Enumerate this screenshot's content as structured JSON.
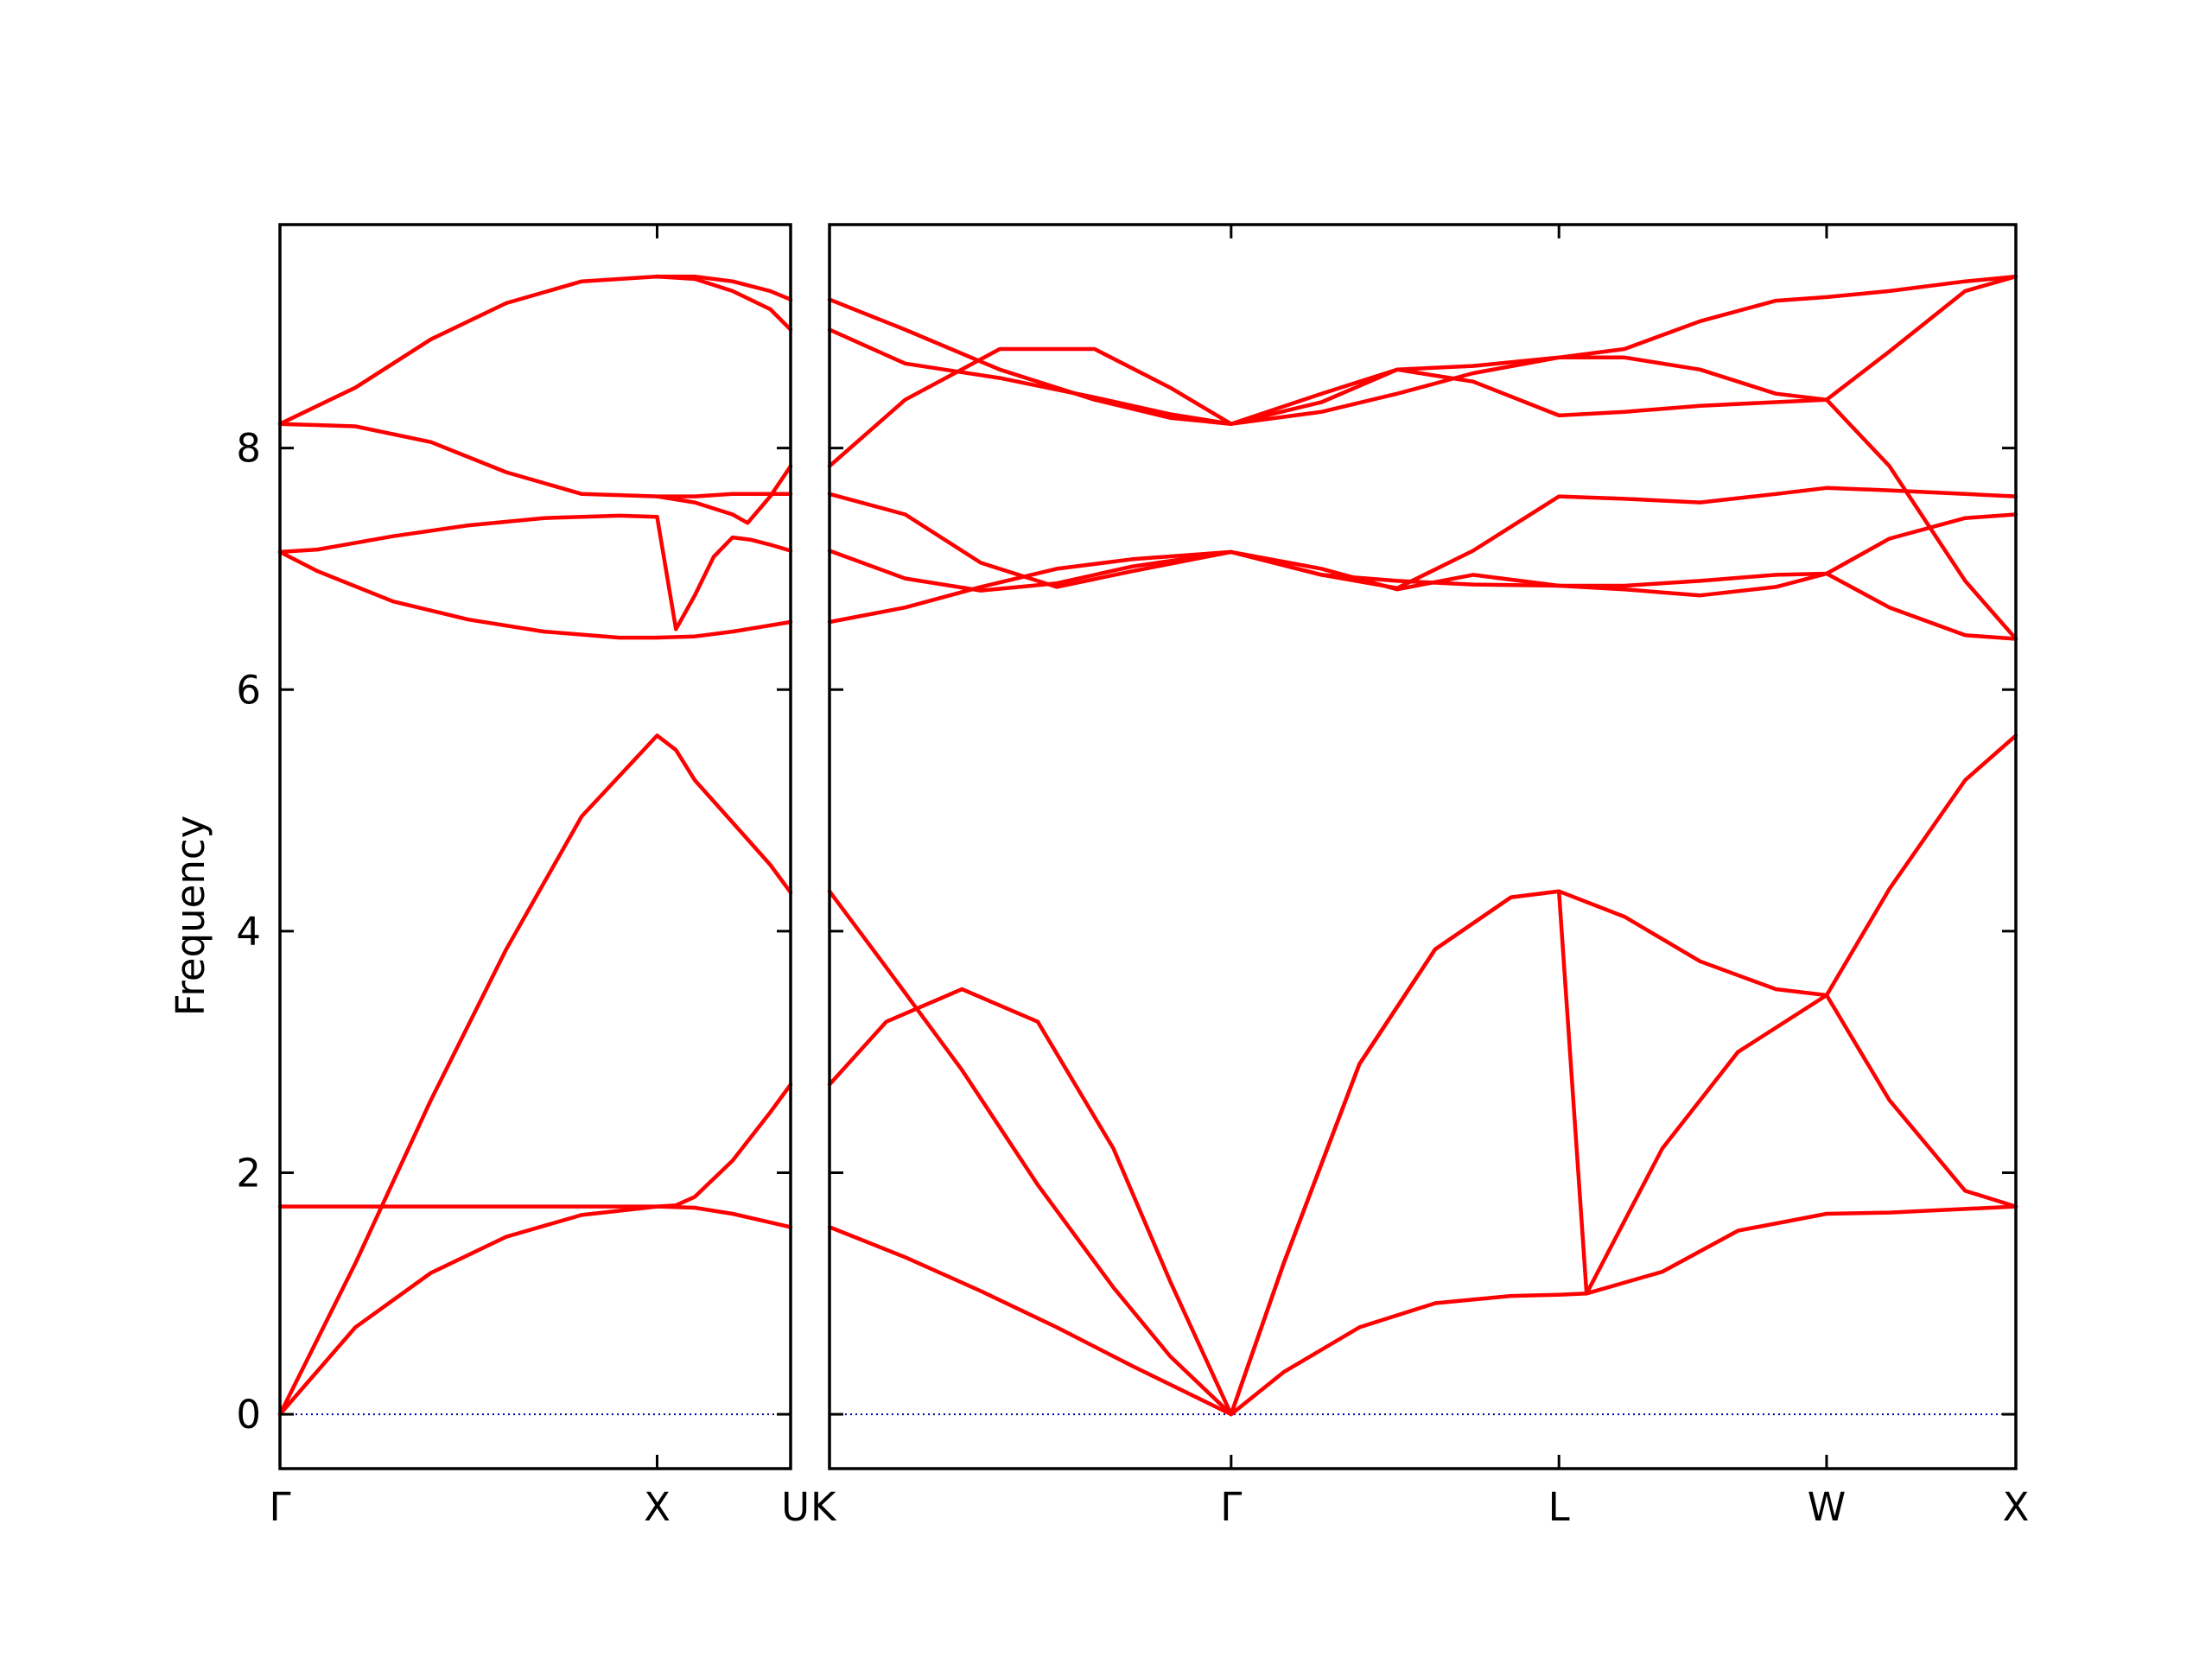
{
  "chart_data": {
    "type": "line",
    "ylabel": "Frequency",
    "ylim": [
      -0.45,
      9.85
    ],
    "yticks": [
      0,
      2,
      4,
      6,
      8
    ],
    "grid": false,
    "colors": {
      "bands": "#ff0000",
      "zero_line": "#0000aa",
      "axes": "#000000"
    },
    "panels": [
      {
        "xticks": [
          {
            "pos": 0.0,
            "label": "Γ"
          },
          {
            "pos": 1.0,
            "label": "X"
          },
          {
            "pos": 1.354,
            "label": "U"
          }
        ],
        "xlim": [
          0,
          1.354
        ],
        "series": [
          {
            "x": [
              0,
              0.2,
              0.4,
              0.6,
              0.8,
              1.0,
              1.1,
              1.2,
              1.354
            ],
            "y": [
              0,
              0.72,
              1.17,
              1.47,
              1.65,
              1.72,
              1.71,
              1.66,
              1.55
            ]
          },
          {
            "x": [
              0,
              0.2,
              0.4,
              0.6,
              0.8,
              1.0,
              1.05,
              1.1,
              1.2,
              1.3,
              1.354
            ],
            "y": [
              0,
              1.25,
              2.6,
              3.85,
              4.95,
              5.62,
              5.5,
              5.25,
              4.9,
              4.55,
              4.32
            ]
          },
          {
            "x": [
              0,
              0.2,
              0.4,
              0.6,
              0.8,
              1.0,
              1.05,
              1.1,
              1.2,
              1.3,
              1.354
            ],
            "y": [
              1.72,
              1.72,
              1.72,
              1.72,
              1.72,
              1.72,
              1.73,
              1.8,
              2.1,
              2.5,
              2.73
            ]
          },
          {
            "x": [
              0,
              0.1,
              0.3,
              0.5,
              0.7,
              0.9,
              1.0,
              1.1,
              1.2,
              1.354
            ],
            "y": [
              7.14,
              6.98,
              6.73,
              6.58,
              6.48,
              6.43,
              6.43,
              6.44,
              6.48,
              6.56
            ]
          },
          {
            "x": [
              0,
              0.1,
              0.3,
              0.5,
              0.7,
              0.9,
              1.0,
              1.05,
              1.1,
              1.15,
              1.2,
              1.25,
              1.3,
              1.354
            ],
            "y": [
              7.14,
              7.16,
              7.27,
              7.36,
              7.42,
              7.44,
              7.43,
              6.5,
              6.78,
              7.1,
              7.26,
              7.24,
              7.2,
              7.15
            ]
          },
          {
            "x": [
              0,
              0.2,
              0.4,
              0.6,
              0.8,
              1.0,
              1.1,
              1.2,
              1.24,
              1.3,
              1.354
            ],
            "y": [
              8.2,
              8.18,
              8.05,
              7.8,
              7.62,
              7.6,
              7.55,
              7.45,
              7.38,
              7.6,
              7.85
            ]
          },
          {
            "x": [
              0,
              0.2,
              0.4,
              0.6,
              0.8,
              1.0,
              1.1,
              1.2,
              1.3,
              1.354
            ],
            "y": [
              8.2,
              8.5,
              8.9,
              9.2,
              9.38,
              9.42,
              9.4,
              9.3,
              9.15,
              8.98
            ]
          },
          {
            "x": [
              1.0,
              1.1,
              1.2,
              1.3,
              1.354
            ],
            "y": [
              9.42,
              9.42,
              9.38,
              9.3,
              9.23
            ]
          },
          {
            "x": [
              1.0,
              1.1,
              1.2,
              1.3,
              1.354
            ],
            "y": [
              7.6,
              7.6,
              7.62,
              7.62,
              7.62
            ]
          }
        ]
      },
      {
        "xticks": [
          {
            "pos": 0.0,
            "label": "K"
          },
          {
            "pos": 1.061,
            "label": "Γ"
          },
          {
            "pos": 1.927,
            "label": "L"
          },
          {
            "pos": 2.634,
            "label": "W"
          },
          {
            "pos": 3.134,
            "label": "X"
          }
        ],
        "xlim": [
          0,
          3.134
        ],
        "series": [
          {
            "x": [
              0,
              0.2,
              0.4,
              0.6,
              0.8,
              1.061,
              1.2,
              1.4,
              1.6,
              1.8,
              1.927,
              2.0,
              2.2,
              2.4,
              2.634,
              2.8,
              3.0,
              3.134
            ],
            "y": [
              1.55,
              1.3,
              1.02,
              0.72,
              0.4,
              0,
              0.35,
              0.72,
              0.92,
              0.98,
              0.99,
              1.0,
              1.18,
              1.52,
              1.66,
              1.67,
              1.7,
              1.72
            ]
          },
          {
            "x": [
              0,
              0.15,
              0.35,
              0.55,
              0.75,
              0.9,
              1.061,
              1.2,
              1.4,
              1.6,
              1.8,
              1.927,
              2.1,
              2.3,
              2.5,
              2.634,
              2.8,
              3.0,
              3.134
            ],
            "y": [
              4.33,
              3.7,
              2.85,
              1.9,
              1.05,
              0.48,
              0,
              1.25,
              2.9,
              3.85,
              4.28,
              4.33,
              4.12,
              3.75,
              3.52,
              3.47,
              2.6,
              1.85,
              1.72
            ]
          },
          {
            "x": [
              0,
              0.15,
              0.35,
              0.55,
              0.75,
              0.9,
              1.061,
              1.2,
              1.4,
              1.6,
              1.8,
              1.927,
              2.0,
              2.2,
              2.4,
              2.634,
              2.8,
              3.0,
              3.134
            ],
            "y": [
              2.73,
              3.25,
              3.52,
              3.25,
              2.2,
              1.1,
              0,
              1.25,
              2.9,
              3.85,
              4.28,
              4.33,
              1.0,
              2.2,
              3.0,
              3.47,
              4.35,
              5.25,
              5.62
            ]
          },
          {
            "x": [
              0,
              0.2,
              0.4,
              0.6,
              0.8,
              1.061,
              1.3,
              1.5,
              1.7,
              1.927,
              2.1,
              2.3,
              2.5,
              2.634,
              2.8,
              3.0,
              3.134
            ],
            "y": [
              6.56,
              6.68,
              6.85,
              7.0,
              7.08,
              7.14,
              6.95,
              6.9,
              6.87,
              6.86,
              6.83,
              6.78,
              6.85,
              6.96,
              6.68,
              6.45,
              6.42
            ]
          },
          {
            "x": [
              0,
              0.2,
              0.4,
              0.6,
              0.8,
              1.061,
              1.3,
              1.5,
              1.7,
              1.927,
              2.1,
              2.3,
              2.5,
              2.634,
              2.8,
              3.0,
              3.134
            ],
            "y": [
              7.15,
              6.92,
              6.82,
              6.88,
              7.02,
              7.14,
              7.0,
              6.83,
              6.95,
              6.86,
              6.86,
              6.9,
              6.95,
              6.96,
              7.25,
              7.42,
              7.45
            ]
          },
          {
            "x": [
              0,
              0.2,
              0.4,
              0.6,
              0.8,
              1.061,
              1.3,
              1.5,
              1.7,
              1.927,
              2.1,
              2.3,
              2.5,
              2.634,
              2.8,
              3.0,
              3.134
            ],
            "y": [
              7.62,
              7.45,
              7.05,
              6.85,
              6.98,
              7.14,
              6.95,
              6.84,
              7.15,
              7.6,
              7.58,
              7.55,
              7.62,
              7.67,
              7.65,
              7.62,
              7.6
            ]
          },
          {
            "x": [
              0,
              0.2,
              0.45,
              0.7,
              0.9,
              1.061,
              1.3,
              1.5,
              1.7,
              1.927,
              2.1,
              2.3,
              2.5,
              2.634,
              2.8,
              3.0,
              3.134
            ],
            "y": [
              7.85,
              8.4,
              8.82,
              8.82,
              8.5,
              8.2,
              8.45,
              8.65,
              8.68,
              8.75,
              8.75,
              8.65,
              8.45,
              8.4,
              7.85,
              6.9,
              6.42
            ]
          },
          {
            "x": [
              0,
              0.2,
              0.45,
              0.7,
              0.9,
              1.061,
              1.3,
              1.5,
              1.7,
              1.927,
              2.1,
              2.3,
              2.5,
              2.634,
              2.8,
              3.0,
              3.134
            ],
            "y": [
              8.98,
              8.7,
              8.58,
              8.42,
              8.28,
              8.2,
              8.38,
              8.65,
              8.55,
              8.27,
              8.3,
              8.35,
              8.38,
              8.4,
              8.8,
              9.3,
              9.42
            ]
          },
          {
            "x": [
              0,
              0.2,
              0.45,
              0.7,
              0.9,
              1.061,
              1.3,
              1.5,
              1.7,
              1.927,
              2.1,
              2.3,
              2.5,
              2.634,
              2.8,
              3.0,
              3.134
            ],
            "y": [
              9.23,
              8.98,
              8.65,
              8.4,
              8.25,
              8.2,
              8.3,
              8.45,
              8.62,
              8.75,
              8.82,
              9.05,
              9.22,
              9.25,
              9.3,
              9.38,
              9.42
            ]
          }
        ]
      }
    ]
  }
}
